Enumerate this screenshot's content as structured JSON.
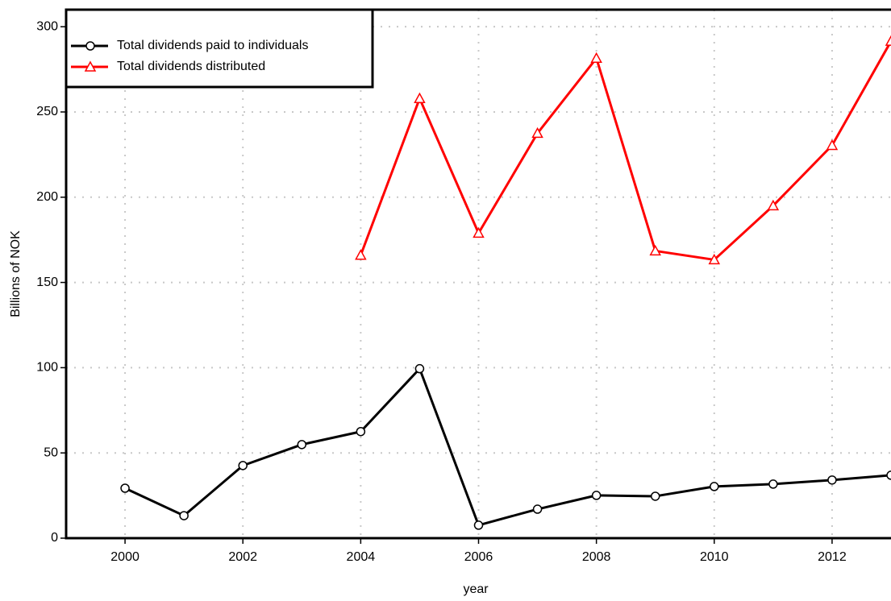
{
  "chart_data": {
    "type": "line",
    "x": [
      2000,
      2001,
      2002,
      2003,
      2004,
      2005,
      2006,
      2007,
      2008,
      2009,
      2010,
      2011,
      2012,
      2013
    ],
    "series": [
      {
        "name": "Total dividends paid to individuals",
        "color": "#000000",
        "marker": "circle",
        "values": [
          29.3,
          13.2,
          42.6,
          54.9,
          62.5,
          99.4,
          7.6,
          17.0,
          25.1,
          24.6,
          30.3,
          31.7,
          34.1,
          36.9
        ]
      },
      {
        "name": "Total dividends distributed",
        "color": "#ff0000",
        "marker": "triangle",
        "values": [
          null,
          null,
          null,
          null,
          166.0,
          257.9,
          178.9,
          237.5,
          281.5,
          168.5,
          163.3,
          195.0,
          230.4,
          291.5
        ]
      }
    ],
    "xlabel": "year",
    "ylabel": "Billions of NOK",
    "xlim": [
      1999,
      2013
    ],
    "xticks": [
      2000,
      2002,
      2004,
      2006,
      2008,
      2010,
      2012
    ],
    "ylim": [
      0,
      310
    ],
    "yticks": [
      0,
      50,
      100,
      150,
      200,
      250,
      300
    ],
    "grid": true,
    "legend": "upper-left"
  }
}
